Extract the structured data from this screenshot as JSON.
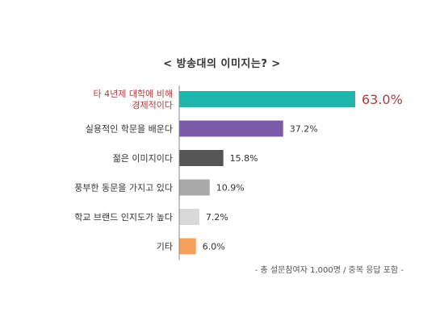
{
  "chart_data": {
    "type": "bar",
    "orientation": "horizontal",
    "title": "< 방송대의 이미지는? >",
    "categories": [
      [
        "타 4년제 대학에 비해",
        "경제적이다"
      ],
      [
        "실용적인 학문을 배운다"
      ],
      [
        "젊은 이미지이다"
      ],
      [
        "풍부한 동문을 가지고 있다"
      ],
      [
        "학교 브랜드 인지도가 높다"
      ],
      [
        "기타"
      ]
    ],
    "values": [
      63.0,
      37.2,
      15.8,
      10.9,
      7.2,
      6.0
    ],
    "value_labels": [
      "63.0%",
      "37.2%",
      "15.8%",
      "10.9%",
      "7.2%",
      "6.0%"
    ],
    "unit": "%",
    "colors": [
      "#1fb5ad",
      "#7b5ba8",
      "#555555",
      "#a8a8a8",
      "#d9d9d9",
      "#f5a05a"
    ],
    "highlight_color": "#b33a3a",
    "grid": false,
    "legend": "none"
  },
  "footnote": "- 총 설문참여자 1,000명 / 중복 응답 포함 -"
}
